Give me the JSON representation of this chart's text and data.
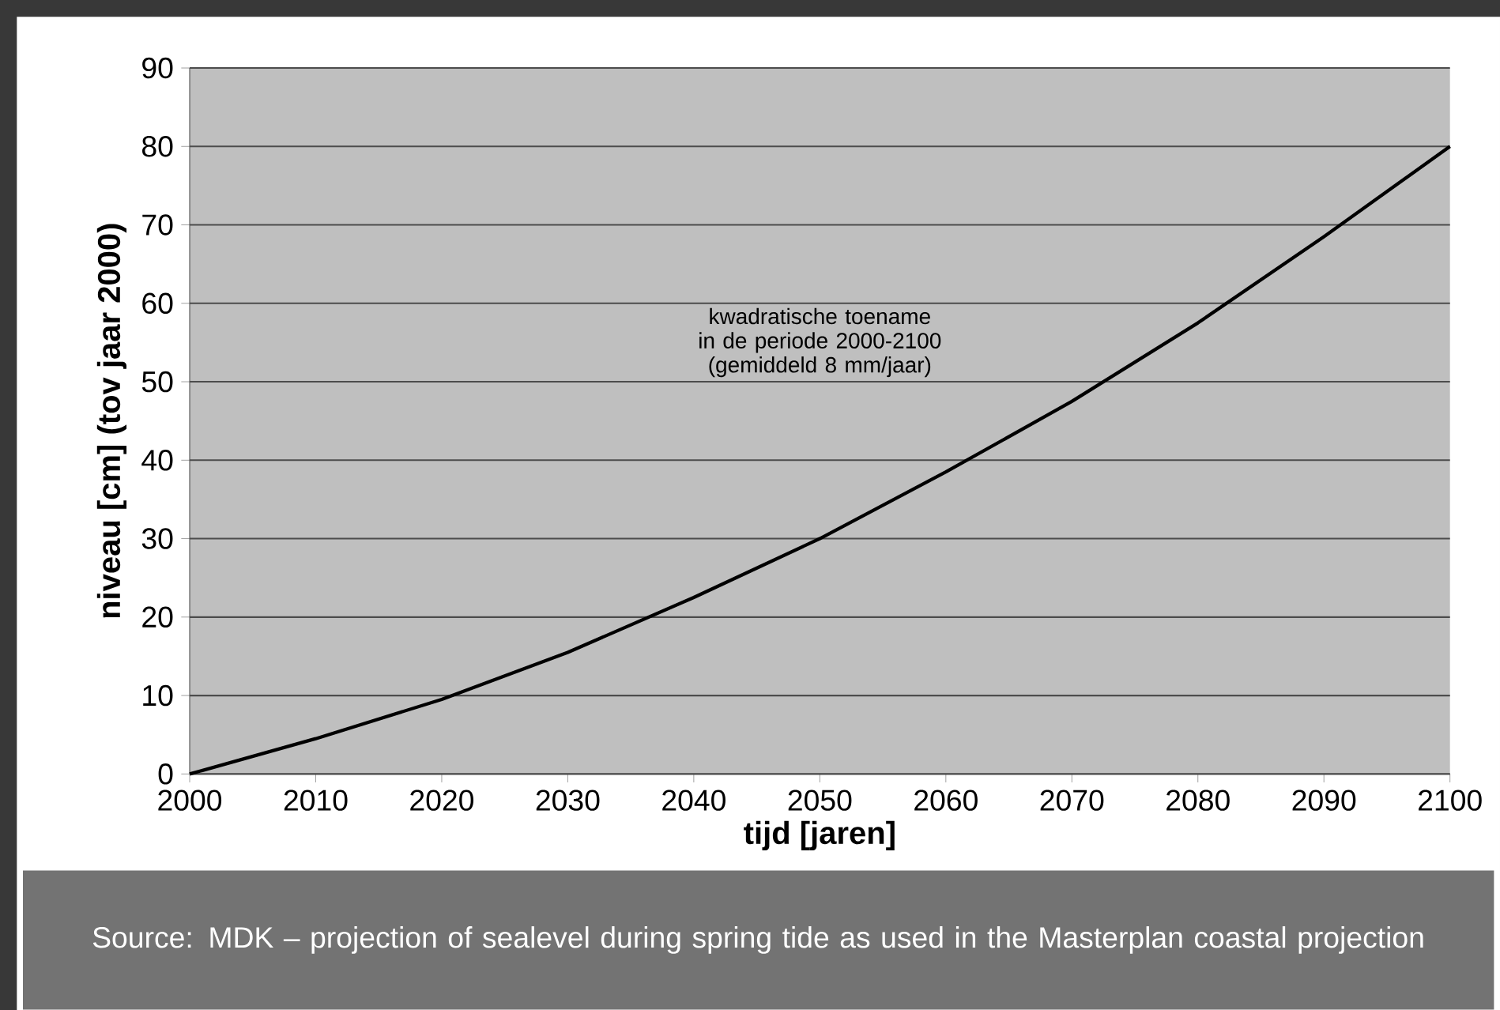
{
  "chart_data": {
    "type": "line",
    "xlabel": "tijd [jaren]",
    "ylabel": "niveau [cm] (tov jaar 2000)",
    "annotations": [
      "kwadratische toename in de periode 2000-2100 (gemiddeld 8 mm/jaar)",
      "Source: MDK – projection of sealevel during spring tide as used in the Masterplan coastal projection"
    ],
    "x": [
      2000,
      2010,
      2020,
      2030,
      2040,
      2050,
      2060,
      2070,
      2080,
      2090,
      2100
    ],
    "series": [
      {
        "color": "#000000",
        "values": [
          0,
          4.5,
          9.5,
          15.5,
          22.5,
          30,
          38.5,
          47.5,
          57.5,
          68.5,
          80
        ]
      }
    ],
    "xlim": [
      2000,
      2100
    ],
    "ylim": [
      0,
      90
    ],
    "xticks": [
      2000,
      2010,
      2020,
      2030,
      2040,
      2050,
      2060,
      2070,
      2080,
      2090,
      2100
    ],
    "yticks": [
      0,
      10,
      20,
      30,
      40,
      50,
      60,
      70,
      80,
      90
    ],
    "grid": "y",
    "marker": "none",
    "line_style": "solid"
  }
}
